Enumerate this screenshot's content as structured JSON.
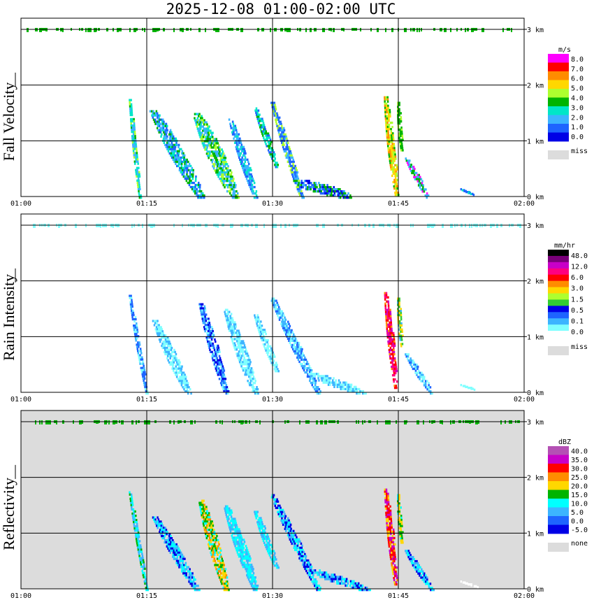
{
  "title": "2025-12-08   01:00-02:00 UTC",
  "chart_data": [
    {
      "type": "heatmap",
      "panel": "Fall Velocity",
      "ylabel": "Fall Velocity",
      "x_ticks": [
        "01:00",
        "01:15",
        "01:30",
        "01:45",
        "02:00"
      ],
      "y_ticks": [
        "0 km",
        "1 km",
        "2 km",
        "3 km"
      ],
      "background": "#ffffff",
      "legend": {
        "unit": "m/s",
        "labels": [
          "8.0",
          "7.0",
          "6.0",
          "5.0",
          "4.0",
          "3.0",
          "2.0",
          "1.0",
          "0.0"
        ],
        "colors": [
          "#ff00ff",
          "#ff0000",
          "#ff8c00",
          "#ffd700",
          "#adff2f",
          "#00b400",
          "#00e6c8",
          "#3cb4ff",
          "#1e64ff",
          "#0000e6"
        ],
        "miss_label": "miss",
        "miss_color": "#dcdcdc"
      },
      "streaks": [
        {
          "t0": 13.0,
          "t1": 14.2,
          "h0": 1.75,
          "h1": 0.0,
          "w": 0.5,
          "colors": [
            "#3cb4ff",
            "#00e6c8",
            "#adff2f",
            "#00b400"
          ]
        },
        {
          "t0": 15.8,
          "t1": 21.5,
          "h0": 1.55,
          "h1": 0.0,
          "w": 1.6,
          "colors": [
            "#1e64ff",
            "#3cb4ff",
            "#00b400",
            "#00e6c8"
          ]
        },
        {
          "t0": 21.0,
          "t1": 25.5,
          "h0": 1.5,
          "h1": 0.0,
          "w": 1.8,
          "colors": [
            "#00b400",
            "#3cb4ff",
            "#00e6c8",
            "#adff2f"
          ]
        },
        {
          "t0": 25.0,
          "t1": 28.0,
          "h0": 1.4,
          "h1": 0.0,
          "w": 0.9,
          "colors": [
            "#3cb4ff",
            "#00e6c8",
            "#1e64ff"
          ]
        },
        {
          "t0": 28.0,
          "t1": 30.5,
          "h0": 1.6,
          "h1": 0.55,
          "w": 0.7,
          "colors": [
            "#00e6c8",
            "#00b400",
            "#1e64ff"
          ]
        },
        {
          "t0": 30.0,
          "t1": 33.5,
          "h0": 1.7,
          "h1": 0.0,
          "w": 0.8,
          "colors": [
            "#1e64ff",
            "#3cb4ff",
            "#adff2f"
          ]
        },
        {
          "t0": 33.5,
          "t1": 38.5,
          "h0": 0.3,
          "h1": 0.0,
          "w": 3.5,
          "colors": [
            "#0000e6",
            "#1e64ff",
            "#3cb4ff",
            "#00b400"
          ]
        },
        {
          "t0": 43.5,
          "t1": 44.8,
          "h0": 1.8,
          "h1": 0.05,
          "w": 0.8,
          "colors": [
            "#ffd700",
            "#adff2f",
            "#00b400",
            "#ff8c00"
          ]
        },
        {
          "t0": 45.0,
          "t1": 45.4,
          "h0": 1.7,
          "h1": 0.85,
          "w": 0.5,
          "colors": [
            "#00b400",
            "#adff2f"
          ]
        },
        {
          "t0": 46.0,
          "t1": 48.5,
          "h0": 0.7,
          "h1": 0.0,
          "w": 0.7,
          "colors": [
            "#3cb4ff",
            "#00b400",
            "#ff00ff"
          ]
        },
        {
          "t0": 52.5,
          "t1": 54.0,
          "h0": 0.15,
          "h1": 0.05,
          "w": 0.4,
          "colors": [
            "#1e64ff",
            "#00e6c8"
          ]
        }
      ],
      "top_band_color": "#00b400"
    },
    {
      "type": "heatmap",
      "panel": "Rain Intensity",
      "ylabel": "Rain Intensity",
      "x_ticks": [
        "01:00",
        "01:15",
        "01:30",
        "01:45",
        "02:00"
      ],
      "y_ticks": [
        "0 km",
        "1 km",
        "2 km",
        "3 km"
      ],
      "background": "#ffffff",
      "legend": {
        "unit": "mm/hr",
        "labels": [
          "48.0",
          "12.0",
          "6.0",
          "3.0",
          "1.5",
          "0.5",
          "0.1",
          "0.0"
        ],
        "colors": [
          "#000000",
          "#7a007a",
          "#c800c8",
          "#ff0080",
          "#ff0000",
          "#ff8c00",
          "#ffd700",
          "#adff2f",
          "#32cd32",
          "#0000e6",
          "#1e64ff",
          "#3cb4ff",
          "#80ffff",
          "#ffffff"
        ],
        "miss_label": "miss",
        "miss_color": "#dcdcdc"
      },
      "streaks": [
        {
          "t0": 13.0,
          "t1": 15.0,
          "h0": 1.75,
          "h1": 0.0,
          "w": 0.5,
          "colors": [
            "#1e64ff",
            "#80ffff",
            "#3cb4ff"
          ]
        },
        {
          "t0": 16.0,
          "t1": 20.0,
          "h0": 1.3,
          "h1": 0.0,
          "w": 1.2,
          "colors": [
            "#80ffff",
            "#3cb4ff"
          ]
        },
        {
          "t0": 21.5,
          "t1": 24.5,
          "h0": 1.6,
          "h1": 0.0,
          "w": 1.0,
          "colors": [
            "#0000e6",
            "#1e64ff",
            "#3cb4ff",
            "#80ffff"
          ]
        },
        {
          "t0": 24.5,
          "t1": 28.0,
          "h0": 1.5,
          "h1": 0.0,
          "w": 1.2,
          "colors": [
            "#80ffff",
            "#3cb4ff"
          ]
        },
        {
          "t0": 28.0,
          "t1": 30.5,
          "h0": 1.4,
          "h1": 0.4,
          "w": 0.8,
          "colors": [
            "#80ffff",
            "#3cb4ff"
          ]
        },
        {
          "t0": 30.0,
          "t1": 35.5,
          "h0": 1.7,
          "h1": 0.0,
          "w": 1.0,
          "colors": [
            "#3cb4ff",
            "#80ffff",
            "#1e64ff"
          ]
        },
        {
          "t0": 35.0,
          "t1": 40.5,
          "h0": 0.35,
          "h1": 0.0,
          "w": 2.5,
          "colors": [
            "#80ffff",
            "#3cb4ff"
          ]
        },
        {
          "t0": 43.5,
          "t1": 44.7,
          "h0": 1.8,
          "h1": 0.1,
          "w": 0.7,
          "colors": [
            "#ff0000",
            "#ff0080",
            "#c800c8",
            "#ff8c00"
          ]
        },
        {
          "t0": 45.0,
          "t1": 45.4,
          "h0": 1.7,
          "h1": 0.85,
          "w": 0.5,
          "colors": [
            "#32cd32",
            "#ffd700",
            "#3cb4ff"
          ]
        },
        {
          "t0": 46.0,
          "t1": 49.0,
          "h0": 0.7,
          "h1": 0.0,
          "w": 0.8,
          "colors": [
            "#80ffff",
            "#3cb4ff",
            "#1e64ff"
          ]
        },
        {
          "t0": 52.5,
          "t1": 54.5,
          "h0": 0.15,
          "h1": 0.05,
          "w": 0.4,
          "colors": [
            "#80ffff"
          ]
        }
      ],
      "top_band_color": "#80ffff"
    },
    {
      "type": "heatmap",
      "panel": "Reflectivity",
      "ylabel": "Reflectivity",
      "x_ticks": [
        "01:00",
        "01:15",
        "01:30",
        "01:45",
        "02:00"
      ],
      "y_ticks": [
        "0 km",
        "1 km",
        "2 km",
        "3 km"
      ],
      "background": "#dcdcdc",
      "legend": {
        "unit": "dBZ",
        "labels": [
          "40.0",
          "35.0",
          "30.0",
          "25.0",
          "20.0",
          "15.0",
          "10.0",
          "5.0",
          "0.0",
          "-5.0"
        ],
        "colors": [
          "#b450b4",
          "#c800c8",
          "#ff0000",
          "#ff8c00",
          "#ffd700",
          "#00b400",
          "#00ffff",
          "#3cb4ff",
          "#1e64ff",
          "#0000e6"
        ],
        "miss_label": "none",
        "miss_color": "#dcdcdc"
      },
      "streaks": [
        {
          "t0": 13.0,
          "t1": 15.0,
          "h0": 1.75,
          "h1": 0.0,
          "w": 0.5,
          "colors": [
            "#00ffff",
            "#3cb4ff",
            "#00b400"
          ]
        },
        {
          "t0": 16.0,
          "t1": 21.0,
          "h0": 1.3,
          "h1": 0.0,
          "w": 1.2,
          "colors": [
            "#00ffff",
            "#3cb4ff",
            "#0000e6"
          ]
        },
        {
          "t0": 21.5,
          "t1": 24.5,
          "h0": 1.6,
          "h1": 0.0,
          "w": 1.2,
          "colors": [
            "#ffd700",
            "#00b400",
            "#00ffff",
            "#ff8c00"
          ]
        },
        {
          "t0": 24.5,
          "t1": 28.0,
          "h0": 1.5,
          "h1": 0.0,
          "w": 1.2,
          "colors": [
            "#00ffff",
            "#3cb4ff"
          ]
        },
        {
          "t0": 28.0,
          "t1": 30.5,
          "h0": 1.4,
          "h1": 0.4,
          "w": 0.8,
          "colors": [
            "#00ffff",
            "#3cb4ff"
          ]
        },
        {
          "t0": 30.0,
          "t1": 35.5,
          "h0": 1.7,
          "h1": 0.0,
          "w": 1.0,
          "colors": [
            "#00ffff",
            "#0000e6",
            "#3cb4ff"
          ]
        },
        {
          "t0": 35.0,
          "t1": 41.0,
          "h0": 0.35,
          "h1": 0.0,
          "w": 2.5,
          "colors": [
            "#3cb4ff",
            "#0000e6",
            "#00ffff"
          ]
        },
        {
          "t0": 43.5,
          "t1": 44.7,
          "h0": 1.8,
          "h1": 0.1,
          "w": 0.7,
          "colors": [
            "#ff0000",
            "#c800c8",
            "#ff8c00",
            "#ffd700"
          ]
        },
        {
          "t0": 45.0,
          "t1": 45.4,
          "h0": 1.7,
          "h1": 0.85,
          "w": 0.5,
          "colors": [
            "#ffd700",
            "#00b400",
            "#00ffff"
          ]
        },
        {
          "t0": 46.0,
          "t1": 49.0,
          "h0": 0.7,
          "h1": 0.0,
          "w": 0.8,
          "colors": [
            "#00ffff",
            "#3cb4ff",
            "#0000e6"
          ]
        },
        {
          "t0": 52.5,
          "t1": 54.5,
          "h0": 0.15,
          "h1": 0.05,
          "w": 0.4,
          "colors": [
            "#ffffff"
          ]
        }
      ],
      "top_band_color": "#00b400"
    }
  ]
}
